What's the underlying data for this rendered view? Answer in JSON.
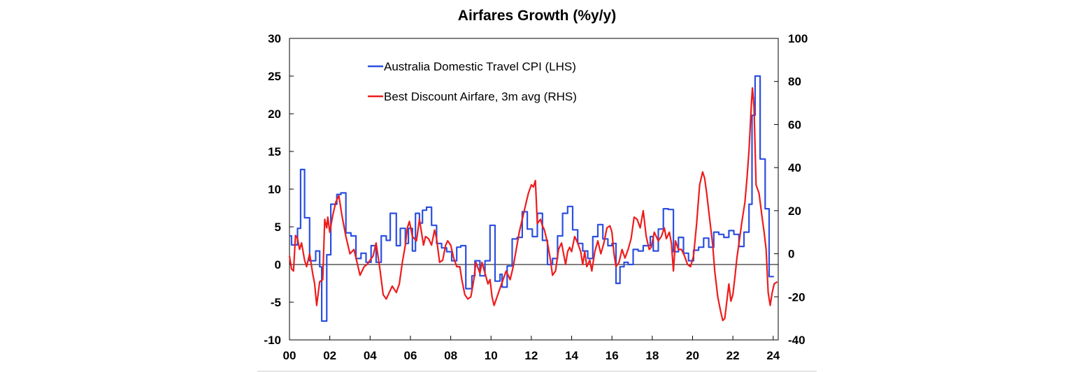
{
  "chart_data": {
    "type": "line",
    "title": "Airfares Growth (%y/y)",
    "x": {
      "min": 2000.0,
      "max": 2024.25,
      "tick_values": [
        2000,
        2002,
        2004,
        2006,
        2008,
        2010,
        2012,
        2014,
        2016,
        2018,
        2020,
        2022,
        2024
      ],
      "tick_labels": [
        "00",
        "02",
        "04",
        "06",
        "08",
        "10",
        "12",
        "14",
        "16",
        "18",
        "20",
        "22",
        "24"
      ]
    },
    "y_left": {
      "min": -10,
      "max": 30,
      "ticks": [
        30,
        25,
        20,
        15,
        10,
        5,
        0,
        -5,
        -10
      ],
      "tick_labels": [
        "30",
        "25",
        "20",
        "15",
        "10",
        "5",
        "0",
        "-5",
        "-10"
      ]
    },
    "y_right": {
      "min": -40,
      "max": 100,
      "ticks": [
        100,
        80,
        60,
        40,
        20,
        0,
        -20,
        -40
      ],
      "tick_labels": [
        "100",
        "80",
        "60",
        "40",
        "20",
        "0",
        "-20",
        "-40"
      ]
    },
    "legend_position": "top-left inside plot",
    "series": [
      {
        "name": "Australia Domestic Travel CPI (LHS)",
        "axis": "left",
        "color": "#2b4fe0",
        "step": true,
        "points": [
          [
            2000.0,
            3.8
          ],
          [
            2000.1,
            2.6
          ],
          [
            2000.4,
            4.8
          ],
          [
            2000.55,
            12.6
          ],
          [
            2000.75,
            6.2
          ],
          [
            2001.0,
            0.5
          ],
          [
            2001.3,
            1.8
          ],
          [
            2001.5,
            -0.3
          ],
          [
            2001.6,
            -7.5
          ],
          [
            2001.85,
            1.3
          ],
          [
            2002.05,
            8.0
          ],
          [
            2002.35,
            9.3
          ],
          [
            2002.55,
            9.5
          ],
          [
            2002.8,
            4.2
          ],
          [
            2003.05,
            3.8
          ],
          [
            2003.3,
            0.8
          ],
          [
            2003.55,
            1.5
          ],
          [
            2003.8,
            0.3
          ],
          [
            2004.05,
            2.5
          ],
          [
            2004.3,
            0.3
          ],
          [
            2004.55,
            3.8
          ],
          [
            2004.8,
            3.2
          ],
          [
            2005.0,
            6.8
          ],
          [
            2005.3,
            2.5
          ],
          [
            2005.5,
            4.8
          ],
          [
            2005.75,
            2.8
          ],
          [
            2005.9,
            4.8
          ],
          [
            2006.1,
            1.8
          ],
          [
            2006.25,
            6.8
          ],
          [
            2006.45,
            5.5
          ],
          [
            2006.6,
            7.2
          ],
          [
            2006.8,
            7.6
          ],
          [
            2007.05,
            5.2
          ],
          [
            2007.3,
            2.8
          ],
          [
            2007.55,
            2.2
          ],
          [
            2007.8,
            1.7
          ],
          [
            2008.05,
            0.5
          ],
          [
            2008.3,
            2.3
          ],
          [
            2008.5,
            2.5
          ],
          [
            2008.75,
            -3.2
          ],
          [
            2009.05,
            -1.5
          ],
          [
            2009.2,
            0.5
          ],
          [
            2009.45,
            -1.5
          ],
          [
            2009.7,
            0.5
          ],
          [
            2009.95,
            5.2
          ],
          [
            2010.2,
            -2.2
          ],
          [
            2010.45,
            -1.3
          ],
          [
            2010.55,
            -3.0
          ],
          [
            2010.8,
            -0.2
          ],
          [
            2011.05,
            3.4
          ],
          [
            2011.3,
            3.6
          ],
          [
            2011.55,
            7.0
          ],
          [
            2011.8,
            4.7
          ],
          [
            2012.05,
            3.7
          ],
          [
            2012.3,
            6.8
          ],
          [
            2012.55,
            3.2
          ],
          [
            2012.8,
            0.0
          ],
          [
            2013.05,
            0.8
          ],
          [
            2013.3,
            3.8
          ],
          [
            2013.55,
            6.8
          ],
          [
            2013.8,
            7.7
          ],
          [
            2014.05,
            4.6
          ],
          [
            2014.3,
            2.8
          ],
          [
            2014.55,
            1.8
          ],
          [
            2014.8,
            0.8
          ],
          [
            2015.05,
            3.7
          ],
          [
            2015.3,
            5.3
          ],
          [
            2015.55,
            3.4
          ],
          [
            2015.8,
            2.5
          ],
          [
            2016.0,
            2.8
          ],
          [
            2016.2,
            -2.5
          ],
          [
            2016.4,
            -0.3
          ],
          [
            2016.6,
            0.3
          ],
          [
            2016.8,
            0.0
          ],
          [
            2017.05,
            2.0
          ],
          [
            2017.3,
            1.8
          ],
          [
            2017.55,
            2.5
          ],
          [
            2017.75,
            2.5
          ],
          [
            2017.9,
            3.7
          ],
          [
            2018.05,
            1.8
          ],
          [
            2018.3,
            4.7
          ],
          [
            2018.55,
            7.4
          ],
          [
            2018.8,
            7.3
          ],
          [
            2019.05,
            1.7
          ],
          [
            2019.3,
            3.6
          ],
          [
            2019.55,
            1.5
          ],
          [
            2019.8,
            0.5
          ],
          [
            2020.05,
            1.9
          ],
          [
            2020.3,
            2.3
          ],
          [
            2020.55,
            3.5
          ],
          [
            2020.8,
            2.3
          ],
          [
            2021.05,
            4.3
          ],
          [
            2021.3,
            4.0
          ],
          [
            2021.55,
            3.6
          ],
          [
            2021.8,
            4.5
          ],
          [
            2022.05,
            4.0
          ],
          [
            2022.3,
            2.4
          ],
          [
            2022.55,
            4.3
          ],
          [
            2022.8,
            8.0
          ],
          [
            2022.95,
            19.8
          ],
          [
            2023.1,
            25.0
          ],
          [
            2023.35,
            14.0
          ],
          [
            2023.6,
            7.4
          ],
          [
            2023.8,
            -1.6
          ],
          [
            2024.0,
            -1.5
          ]
        ]
      },
      {
        "name": "Best Discount Airfare, 3m avg (RHS)",
        "axis": "right",
        "color": "#ee1c1c",
        "step": false,
        "points": [
          [
            2000.0,
            -1.0
          ],
          [
            2000.1,
            -7.0
          ],
          [
            2000.2,
            -8.0
          ],
          [
            2000.3,
            8.5
          ],
          [
            2000.4,
            7.0
          ],
          [
            2000.5,
            2.0
          ],
          [
            2000.6,
            5.0
          ],
          [
            2000.75,
            -3.0
          ],
          [
            2000.85,
            -6.0
          ],
          [
            2001.0,
            0.0
          ],
          [
            2001.15,
            -9.0
          ],
          [
            2001.25,
            -14.0
          ],
          [
            2001.35,
            -24.0
          ],
          [
            2001.5,
            -13.0
          ],
          [
            2001.65,
            -12.0
          ],
          [
            2001.75,
            16.0
          ],
          [
            2001.85,
            12.0
          ],
          [
            2001.9,
            17.0
          ],
          [
            2002.0,
            10.0
          ],
          [
            2002.15,
            18.0
          ],
          [
            2002.3,
            24.0
          ],
          [
            2002.45,
            27.0
          ],
          [
            2002.6,
            18.0
          ],
          [
            2002.8,
            8.0
          ],
          [
            2003.0,
            0.0
          ],
          [
            2003.2,
            2.0
          ],
          [
            2003.35,
            -4.0
          ],
          [
            2003.5,
            -10.0
          ],
          [
            2003.7,
            -6.0
          ],
          [
            2003.85,
            -5.0
          ],
          [
            2004.0,
            -3.0
          ],
          [
            2004.15,
            -1.0
          ],
          [
            2004.3,
            5.0
          ],
          [
            2004.5,
            -8.0
          ],
          [
            2004.65,
            -19.0
          ],
          [
            2004.8,
            -21.0
          ],
          [
            2004.95,
            -18.0
          ],
          [
            2005.1,
            -15.0
          ],
          [
            2005.3,
            -18.0
          ],
          [
            2005.45,
            -14.0
          ],
          [
            2005.6,
            -4.0
          ],
          [
            2005.75,
            4.0
          ],
          [
            2005.85,
            12.0
          ],
          [
            2005.95,
            15.0
          ],
          [
            2006.1,
            8.0
          ],
          [
            2006.3,
            6.0
          ],
          [
            2006.45,
            16.0
          ],
          [
            2006.55,
            10.0
          ],
          [
            2006.65,
            4.0
          ],
          [
            2006.75,
            8.0
          ],
          [
            2006.9,
            7.0
          ],
          [
            2007.05,
            4.0
          ],
          [
            2007.2,
            11.0
          ],
          [
            2007.3,
            7.0
          ],
          [
            2007.45,
            -4.0
          ],
          [
            2007.6,
            -3.0
          ],
          [
            2007.75,
            4.0
          ],
          [
            2007.85,
            6.0
          ],
          [
            2008.0,
            4.0
          ],
          [
            2008.15,
            -2.0
          ],
          [
            2008.3,
            -6.0
          ],
          [
            2008.45,
            -6.0
          ],
          [
            2008.55,
            -12.0
          ],
          [
            2008.7,
            -19.0
          ],
          [
            2008.85,
            -21.0
          ],
          [
            2009.0,
            -20.0
          ],
          [
            2009.15,
            -12.0
          ],
          [
            2009.25,
            -4.0
          ],
          [
            2009.45,
            -9.0
          ],
          [
            2009.55,
            -4.0
          ],
          [
            2009.7,
            -9.0
          ],
          [
            2009.85,
            -14.0
          ],
          [
            2009.95,
            -12.0
          ],
          [
            2010.05,
            -20.0
          ],
          [
            2010.15,
            -24.0
          ],
          [
            2010.3,
            -20.0
          ],
          [
            2010.45,
            -16.0
          ],
          [
            2010.6,
            -12.0
          ],
          [
            2010.75,
            -8.0
          ],
          [
            2010.95,
            -12.0
          ],
          [
            2011.1,
            -6.0
          ],
          [
            2011.25,
            2.0
          ],
          [
            2011.4,
            10.0
          ],
          [
            2011.55,
            16.0
          ],
          [
            2011.7,
            22.0
          ],
          [
            2011.85,
            28.0
          ],
          [
            2012.0,
            32.0
          ],
          [
            2012.1,
            31.0
          ],
          [
            2012.2,
            34.0
          ],
          [
            2012.3,
            14.0
          ],
          [
            2012.45,
            16.0
          ],
          [
            2012.55,
            13.0
          ],
          [
            2012.65,
            11.0
          ],
          [
            2012.8,
            5.0
          ],
          [
            2012.95,
            -3.0
          ],
          [
            2013.05,
            -10.0
          ],
          [
            2013.2,
            -8.0
          ],
          [
            2013.35,
            2.0
          ],
          [
            2013.5,
            5.0
          ],
          [
            2013.6,
            0.0
          ],
          [
            2013.7,
            -5.0
          ],
          [
            2013.8,
            1.0
          ],
          [
            2013.9,
            3.0
          ],
          [
            2014.0,
            1.0
          ],
          [
            2014.15,
            8.0
          ],
          [
            2014.3,
            5.0
          ],
          [
            2014.45,
            1.0
          ],
          [
            2014.55,
            -5.0
          ],
          [
            2014.65,
            1.0
          ],
          [
            2014.75,
            -6.0
          ],
          [
            2014.9,
            -3.0
          ],
          [
            2015.0,
            -8.0
          ],
          [
            2015.15,
            1.0
          ],
          [
            2015.3,
            6.0
          ],
          [
            2015.45,
            0.0
          ],
          [
            2015.6,
            5.0
          ],
          [
            2015.75,
            12.0
          ],
          [
            2015.9,
            13.0
          ],
          [
            2016.0,
            10.0
          ],
          [
            2016.1,
            0.0
          ],
          [
            2016.2,
            -6.0
          ],
          [
            2016.35,
            -4.0
          ],
          [
            2016.5,
            2.0
          ],
          [
            2016.65,
            -2.0
          ],
          [
            2016.8,
            2.0
          ],
          [
            2016.95,
            7.0
          ],
          [
            2017.1,
            17.0
          ],
          [
            2017.25,
            16.0
          ],
          [
            2017.4,
            12.0
          ],
          [
            2017.55,
            20.0
          ],
          [
            2017.7,
            8.0
          ],
          [
            2017.85,
            2.0
          ],
          [
            2017.95,
            3.0
          ],
          [
            2018.1,
            10.0
          ],
          [
            2018.3,
            6.0
          ],
          [
            2018.45,
            8.0
          ],
          [
            2018.6,
            12.0
          ],
          [
            2018.7,
            7.0
          ],
          [
            2018.85,
            10.0
          ],
          [
            2018.95,
            5.0
          ],
          [
            2019.05,
            -8.0
          ],
          [
            2019.15,
            6.0
          ],
          [
            2019.3,
            2.0
          ],
          [
            2019.45,
            2.0
          ],
          [
            2019.6,
            -1.0
          ],
          [
            2019.75,
            -5.0
          ],
          [
            2019.9,
            -6.0
          ],
          [
            2020.05,
            -1.0
          ],
          [
            2020.2,
            14.0
          ],
          [
            2020.35,
            32.0
          ],
          [
            2020.5,
            38.0
          ],
          [
            2020.6,
            35.0
          ],
          [
            2020.7,
            28.0
          ],
          [
            2020.85,
            16.0
          ],
          [
            2021.0,
            4.0
          ],
          [
            2021.1,
            -8.0
          ],
          [
            2021.25,
            -20.0
          ],
          [
            2021.4,
            -27.0
          ],
          [
            2021.5,
            -31.0
          ],
          [
            2021.6,
            -30.0
          ],
          [
            2021.7,
            -22.0
          ],
          [
            2021.8,
            -14.0
          ],
          [
            2021.9,
            -22.0
          ],
          [
            2022.0,
            -19.0
          ],
          [
            2022.1,
            -11.0
          ],
          [
            2022.2,
            -2.0
          ],
          [
            2022.35,
            8.0
          ],
          [
            2022.45,
            15.0
          ],
          [
            2022.6,
            24.0
          ],
          [
            2022.7,
            35.0
          ],
          [
            2022.8,
            48.0
          ],
          [
            2022.92,
            70.0
          ],
          [
            2022.97,
            77.0
          ],
          [
            2023.05,
            68.0
          ],
          [
            2023.15,
            32.0
          ],
          [
            2023.3,
            28.0
          ],
          [
            2023.45,
            17.0
          ],
          [
            2023.55,
            10.0
          ],
          [
            2023.65,
            2.0
          ],
          [
            2023.75,
            -18.0
          ],
          [
            2023.85,
            -24.0
          ],
          [
            2023.95,
            -18.0
          ],
          [
            2024.05,
            -14.0
          ],
          [
            2024.2,
            -13.0
          ]
        ]
      }
    ]
  }
}
